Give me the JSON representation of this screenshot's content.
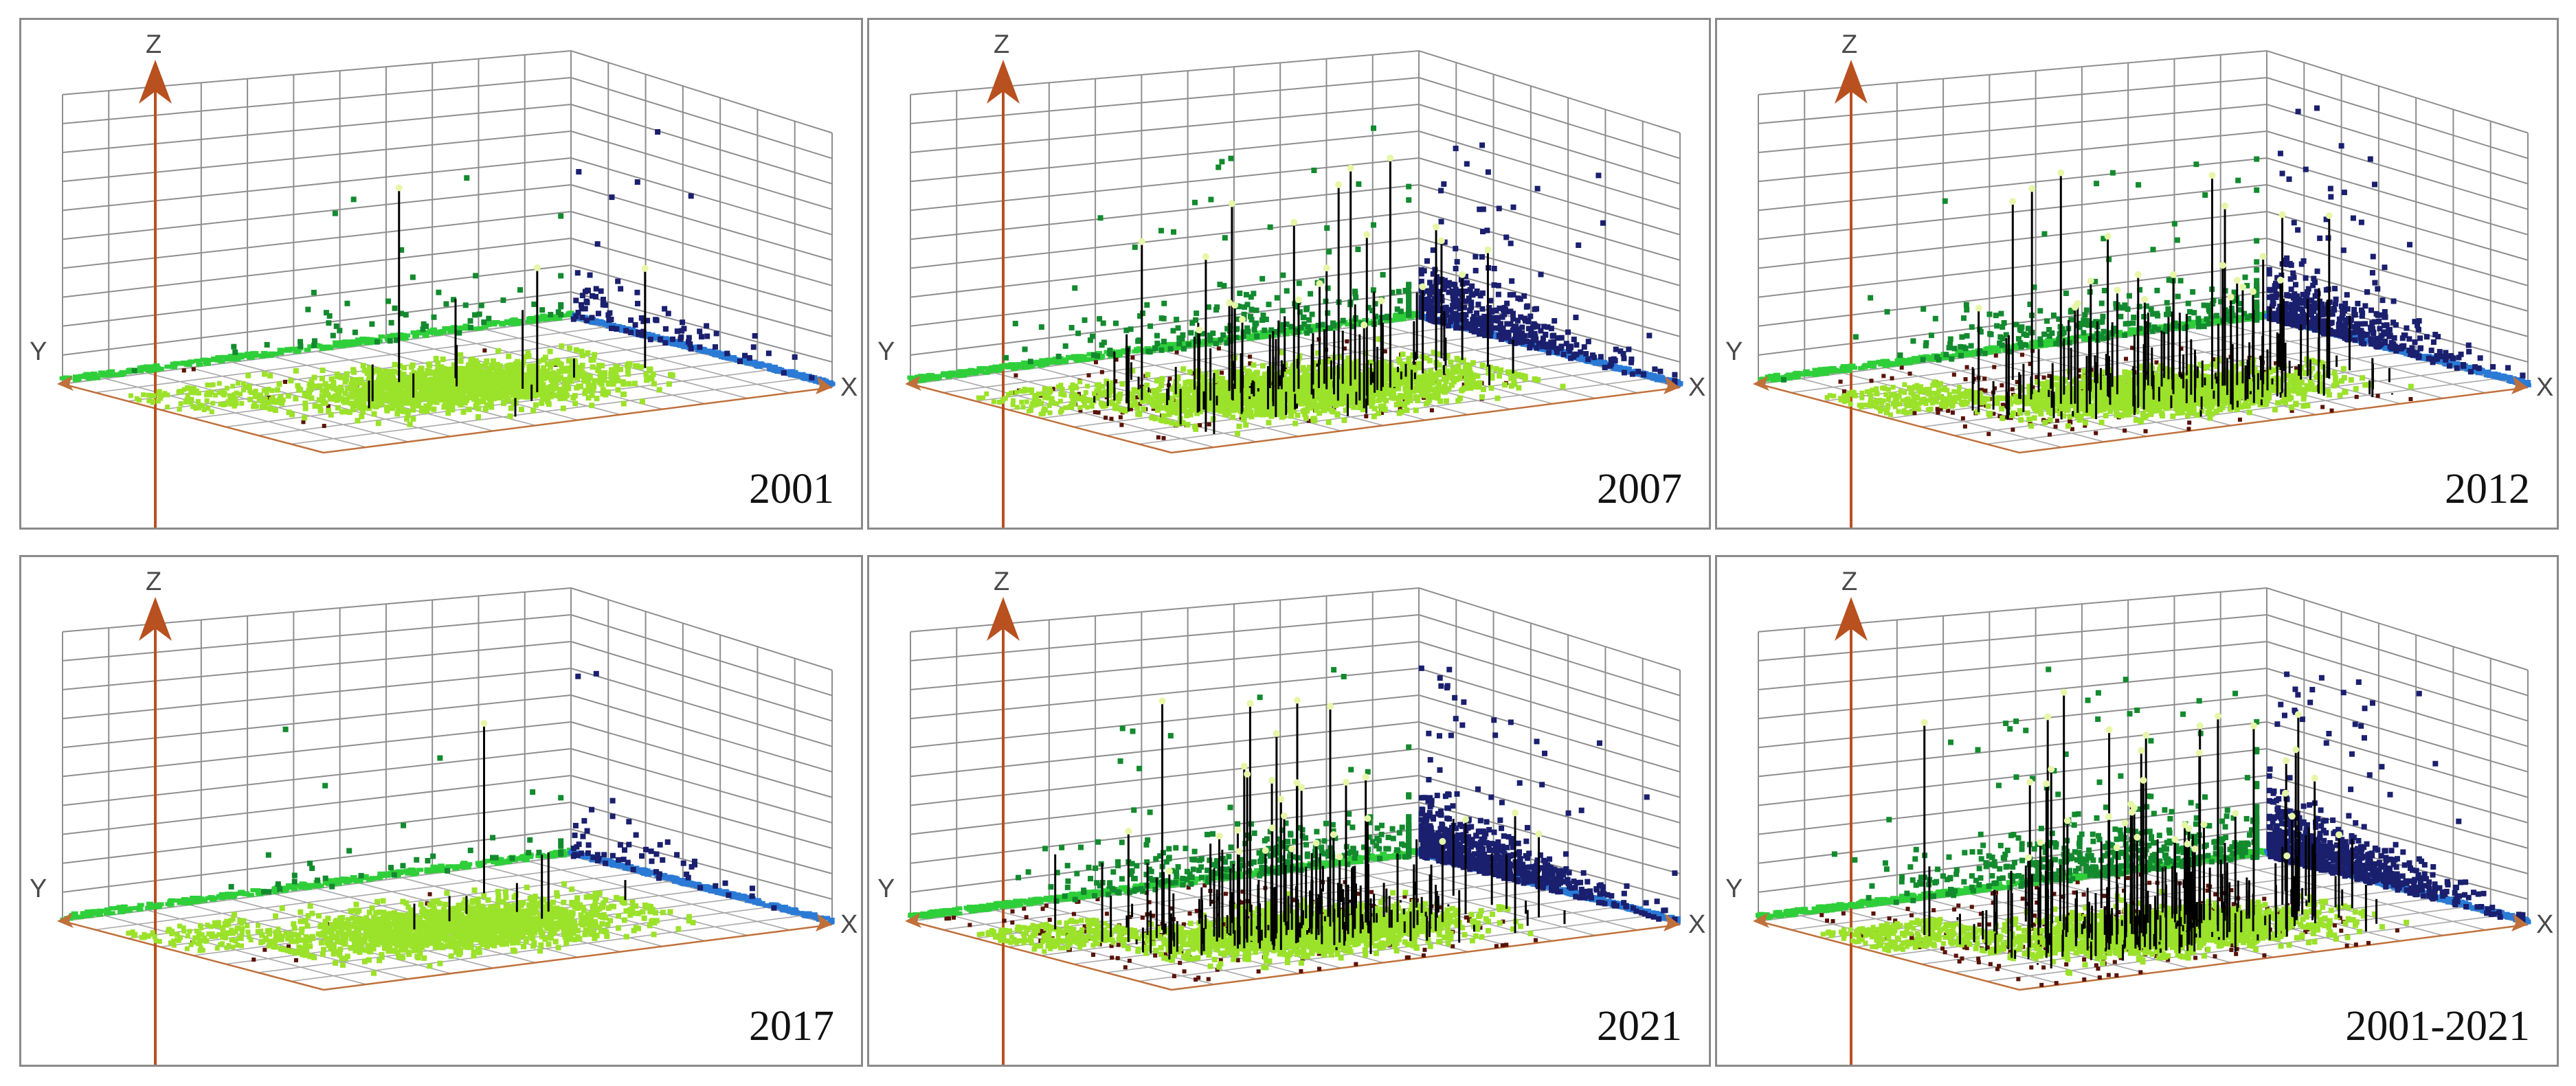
{
  "chart_data": [
    {
      "type": "scatter",
      "title": "2001",
      "axes": {
        "x": "X",
        "y": "Y",
        "z": "Z"
      },
      "grid": true,
      "series": [
        {
          "name": "XY-plane points",
          "color": "#9be22a",
          "cluster": {
            "x_center": 0.52,
            "y_center": 0.48,
            "spread": 0.14,
            "count": 1500
          },
          "tail_count": 120
        },
        {
          "name": "YZ-wall projection",
          "color": "#138a2e",
          "count": 60
        },
        {
          "name": "XZ-wall projection",
          "color": "#1a1f6e",
          "count": 90
        },
        {
          "name": "Y-axis projection",
          "color": "#2fcf3a",
          "count": 300
        },
        {
          "name": "X-axis projection",
          "color": "#2a7ad6",
          "count": 300
        },
        {
          "name": "Z drop lines",
          "color": "#000000",
          "count": 12,
          "max_z": 0.95
        }
      ]
    },
    {
      "type": "scatter",
      "title": "2007",
      "axes": {
        "x": "X",
        "y": "Y",
        "z": "Z"
      },
      "grid": true,
      "series": [
        {
          "name": "XY-plane points",
          "color": "#9be22a",
          "cluster": {
            "x_center": 0.55,
            "y_center": 0.5,
            "spread": 0.15,
            "count": 1800
          },
          "tail_count": 150
        },
        {
          "name": "YZ-wall projection",
          "color": "#138a2e",
          "count": 220
        },
        {
          "name": "XZ-wall projection",
          "color": "#1a1f6e",
          "count": 420
        },
        {
          "name": "Y-axis projection",
          "color": "#2fcf3a",
          "count": 400
        },
        {
          "name": "X-axis projection",
          "color": "#2a7ad6",
          "count": 400
        },
        {
          "name": "Z drop lines",
          "color": "#000000",
          "count": 110,
          "max_z": 0.9
        }
      ]
    },
    {
      "type": "scatter",
      "title": "2012",
      "axes": {
        "x": "X",
        "y": "Y",
        "z": "Z"
      },
      "grid": true,
      "series": [
        {
          "name": "XY-plane points",
          "color": "#9be22a",
          "cluster": {
            "x_center": 0.6,
            "y_center": 0.5,
            "spread": 0.13,
            "count": 1700
          },
          "tail_count": 220
        },
        {
          "name": "YZ-wall projection",
          "color": "#138a2e",
          "count": 260
        },
        {
          "name": "XZ-wall projection",
          "color": "#1a1f6e",
          "count": 450
        },
        {
          "name": "Y-axis projection",
          "color": "#2fcf3a",
          "count": 400
        },
        {
          "name": "X-axis projection",
          "color": "#2a7ad6",
          "count": 400
        },
        {
          "name": "Z drop lines",
          "color": "#000000",
          "count": 140,
          "max_z": 0.93
        }
      ]
    },
    {
      "type": "scatter",
      "title": "2017",
      "axes": {
        "x": "X",
        "y": "Y",
        "z": "Z"
      },
      "grid": true,
      "series": [
        {
          "name": "XY-plane points",
          "color": "#9be22a",
          "cluster": {
            "x_center": 0.55,
            "y_center": 0.5,
            "spread": 0.15,
            "count": 1600
          },
          "tail_count": 140
        },
        {
          "name": "YZ-wall projection",
          "color": "#138a2e",
          "count": 40
        },
        {
          "name": "XZ-wall projection",
          "color": "#1a1f6e",
          "count": 60
        },
        {
          "name": "Y-axis projection",
          "color": "#2fcf3a",
          "count": 300
        },
        {
          "name": "X-axis projection",
          "color": "#2a7ad6",
          "count": 300
        },
        {
          "name": "Z drop lines",
          "color": "#000000",
          "count": 8,
          "max_z": 0.85
        }
      ]
    },
    {
      "type": "scatter",
      "title": "2021",
      "axes": {
        "x": "X",
        "y": "Y",
        "z": "Z"
      },
      "grid": true,
      "series": [
        {
          "name": "XY-plane points",
          "color": "#9be22a",
          "cluster": {
            "x_center": 0.6,
            "y_center": 0.52,
            "spread": 0.13,
            "count": 1800
          },
          "tail_count": 260
        },
        {
          "name": "YZ-wall projection",
          "color": "#138a2e",
          "count": 320
        },
        {
          "name": "XZ-wall projection",
          "color": "#1a1f6e",
          "count": 700
        },
        {
          "name": "Y-axis projection",
          "color": "#2fcf3a",
          "count": 450
        },
        {
          "name": "X-axis projection",
          "color": "#2a7ad6",
          "count": 450
        },
        {
          "name": "Z drop lines",
          "color": "#000000",
          "count": 170,
          "max_z": 0.9
        }
      ]
    },
    {
      "type": "scatter",
      "title": "2001-2021",
      "axes": {
        "x": "X",
        "y": "Y",
        "z": "Z"
      },
      "grid": true,
      "series": [
        {
          "name": "XY-plane points",
          "color": "#9be22a",
          "cluster": {
            "x_center": 0.6,
            "y_center": 0.52,
            "spread": 0.13,
            "count": 1900
          },
          "tail_count": 280
        },
        {
          "name": "YZ-wall projection",
          "color": "#138a2e",
          "count": 520
        },
        {
          "name": "XZ-wall projection",
          "color": "#1a1f6e",
          "count": 750
        },
        {
          "name": "Y-axis projection",
          "color": "#2fcf3a",
          "count": 450
        },
        {
          "name": "X-axis projection",
          "color": "#2a7ad6",
          "count": 450
        },
        {
          "name": "Z drop lines",
          "color": "#000000",
          "count": 200,
          "max_z": 0.95
        }
      ]
    }
  ],
  "colors": {
    "grid_line": "#8e8e8e",
    "floor_axis": "#c0703a",
    "z_axis": "#b8501f",
    "panel_border": "#8a8a8a",
    "dark_red_points": "#5a1206",
    "pale_tip": "#e6f7a8"
  }
}
